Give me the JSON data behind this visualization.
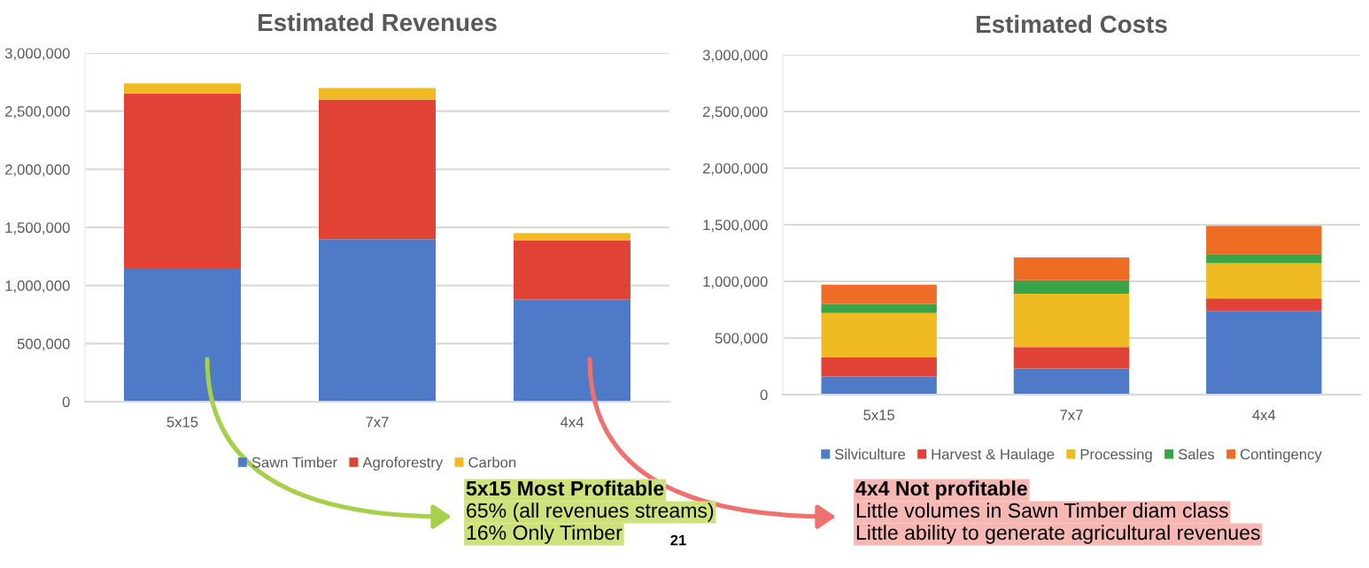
{
  "chart_data": [
    {
      "type": "bar",
      "title": "Estimated Revenues",
      "stacked": true,
      "categories": [
        "5x15",
        "7x7",
        "4x4"
      ],
      "series": [
        {
          "name": "Sawn Timber",
          "color": "#4e7ac7",
          "values": [
            1150000,
            1400000,
            880000
          ]
        },
        {
          "name": "Agroforestry",
          "color": "#e04335",
          "values": [
            1500000,
            1200000,
            510000
          ]
        },
        {
          "name": "Carbon",
          "color": "#f0bb22",
          "values": [
            90000,
            100000,
            60000
          ]
        }
      ],
      "ylim": [
        0,
        3000000
      ],
      "yticks": [
        {
          "value": 0,
          "label": "0"
        },
        {
          "value": 500000,
          "label": "500,000"
        },
        {
          "value": 1000000,
          "label": "1,000,000"
        },
        {
          "value": 1500000,
          "label": "1,500,000"
        },
        {
          "value": 2000000,
          "label": "2,000,000"
        },
        {
          "value": 2500000,
          "label": "2,500,000"
        },
        {
          "value": 3000000,
          "label": "3,000,000"
        }
      ],
      "grid": "y",
      "legend": "bottom",
      "annotations": [
        "5x15 Most Profitable",
        "65% (all revenues streams)",
        "16% Only Timber",
        "21"
      ]
    },
    {
      "type": "bar",
      "title": "Estimated Costs",
      "stacked": true,
      "categories": [
        "5x15",
        "7x7",
        "4x4"
      ],
      "series": [
        {
          "name": "Silviculture",
          "color": "#4e7ac7",
          "values": [
            160000,
            230000,
            740000
          ]
        },
        {
          "name": "Harvest & Haulage",
          "color": "#e04335",
          "values": [
            170000,
            190000,
            110000
          ]
        },
        {
          "name": "Processing",
          "color": "#f0bb22",
          "values": [
            390000,
            470000,
            310000
          ]
        },
        {
          "name": "Sales",
          "color": "#38a349",
          "values": [
            80000,
            120000,
            80000
          ]
        },
        {
          "name": "Contingency",
          "color": "#ee6c24",
          "values": [
            170000,
            200000,
            250000
          ]
        }
      ],
      "ylim": [
        0,
        3000000
      ],
      "yticks": [
        {
          "value": 0,
          "label": "0"
        },
        {
          "value": 500000,
          "label": "500,000"
        },
        {
          "value": 1000000,
          "label": "1,000,000"
        },
        {
          "value": 1500000,
          "label": "1,500,000"
        },
        {
          "value": 2000000,
          "label": "2,000,000"
        },
        {
          "value": 2500000,
          "label": "2,500,000"
        },
        {
          "value": 3000000,
          "label": "3,000,000"
        }
      ],
      "grid": "y",
      "legend": "bottom",
      "annotations": [
        "4x4 Not profitable",
        "Little volumes in Sawn Timber diam class",
        "Little ability to generate agricultural revenues"
      ]
    }
  ]
}
